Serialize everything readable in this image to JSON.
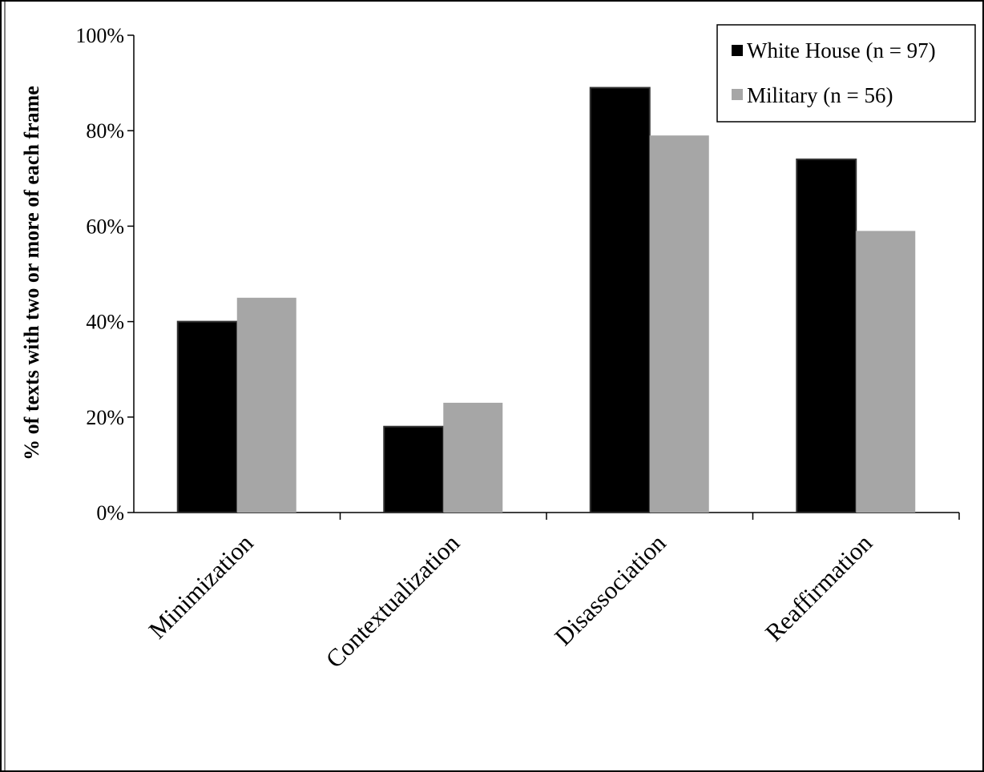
{
  "chart_data": {
    "type": "bar",
    "title": "",
    "xlabel": "",
    "ylabel": "% of texts with two or more of each frame",
    "categories": [
      "Minimization",
      "Contextualization",
      "Disassociation",
      "Reaffirmation"
    ],
    "series": [
      {
        "name": "White House (n = 97)",
        "color": "#000000",
        "values": [
          40,
          18,
          89,
          74
        ]
      },
      {
        "name": "Military (n = 56)",
        "color": "#a6a6a6",
        "values": [
          45,
          23,
          79,
          59
        ]
      }
    ],
    "ylim": [
      0,
      100
    ],
    "yticks": [
      0,
      20,
      40,
      60,
      80,
      100
    ],
    "ytick_labels": [
      "0%",
      "20%",
      "40%",
      "60%",
      "80%",
      "100%"
    ],
    "grid": false,
    "legend_position": "top-right"
  }
}
